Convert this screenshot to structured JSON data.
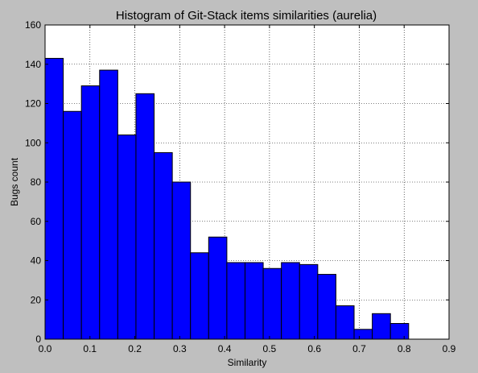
{
  "chart_data": {
    "type": "bar",
    "title": "Histogram of Git-Stack items similarities (aurelia)",
    "xlabel": "Similarity",
    "ylabel": "Bugs count",
    "xlim": [
      0.0,
      0.9
    ],
    "ylim": [
      0,
      160
    ],
    "xticks": [
      "0.0",
      "0.1",
      "0.2",
      "0.3",
      "0.4",
      "0.5",
      "0.6",
      "0.7",
      "0.8",
      "0.9"
    ],
    "yticks": [
      "0",
      "20",
      "40",
      "60",
      "80",
      "100",
      "120",
      "140",
      "160"
    ],
    "grid": true,
    "bin_width": 0.0405,
    "bin_starts": [
      0.0,
      0.0405,
      0.081,
      0.1215,
      0.162,
      0.2025,
      0.243,
      0.2835,
      0.324,
      0.3645,
      0.405,
      0.4455,
      0.486,
      0.5265,
      0.567,
      0.6075,
      0.648,
      0.6885,
      0.729,
      0.7695
    ],
    "values": [
      143,
      116,
      129,
      137,
      104,
      125,
      95,
      80,
      44,
      52,
      39,
      39,
      36,
      39,
      38,
      33,
      17,
      5,
      13,
      8
    ],
    "colors": {
      "bar": "#0000ff",
      "edge": "#000000",
      "plot_bg": "#ffffff",
      "figure_bg": "#bfbfbf",
      "grid": "#000000"
    }
  }
}
